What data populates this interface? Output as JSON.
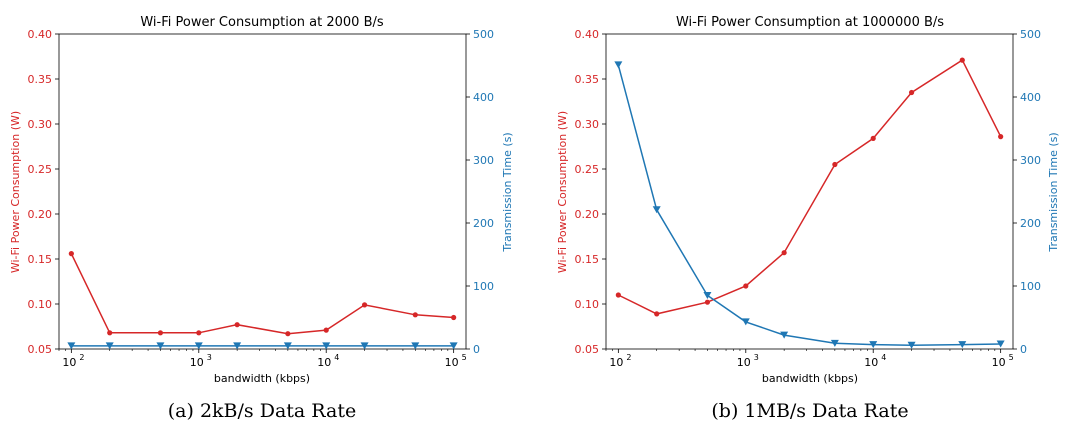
{
  "colors": {
    "power": "#d62728",
    "time": "#1f77b4"
  },
  "chart_data": [
    {
      "type": "line",
      "title": "Wi-Fi Power Consumption at 2000 B/s",
      "caption": "(a) 2kB/s Data Rate",
      "xlabel": "bandwidth (kbps)",
      "xscale": "log",
      "xlim": [
        80,
        125000
      ],
      "xticks": [
        100,
        1000,
        10000,
        100000
      ],
      "xtick_labels": [
        "10",
        "10",
        "10",
        "10"
      ],
      "xtick_exponents": [
        "2",
        "3",
        "4",
        "5"
      ],
      "ylabel_left": "Wi-Fi Power Consumption (W)",
      "ylabel_right": "Transmission Time (s)",
      "ylim_left": [
        0.05,
        0.4
      ],
      "ylim_right": [
        0,
        500
      ],
      "yticks_left": [
        "0.05",
        "0.10",
        "0.15",
        "0.20",
        "0.25",
        "0.30",
        "0.35",
        "0.40"
      ],
      "yticks_right": [
        "0",
        "100",
        "200",
        "300",
        "400",
        "500"
      ],
      "x": [
        100,
        200,
        500,
        1000,
        2000,
        5000,
        10000,
        20000,
        50000,
        100000
      ],
      "series": [
        {
          "axis": "left",
          "color": "#d62728",
          "marker": "circle",
          "values": [
            0.156,
            0.068,
            0.068,
            0.068,
            0.077,
            0.067,
            0.071,
            0.099,
            0.088,
            0.085
          ]
        },
        {
          "axis": "right",
          "color": "#1f77b4",
          "marker": "triangle-down",
          "values": [
            5,
            5,
            5,
            5,
            5,
            5,
            5,
            5,
            5,
            5
          ]
        }
      ]
    },
    {
      "type": "line",
      "title": "Wi-Fi Power Consumption at 1000000 B/s",
      "caption": "(b) 1MB/s Data Rate",
      "xlabel": "bandwidth (kbps)",
      "xscale": "log",
      "xlim": [
        80,
        125000
      ],
      "xticks": [
        100,
        1000,
        10000,
        100000
      ],
      "xtick_labels": [
        "10",
        "10",
        "10",
        "10"
      ],
      "xtick_exponents": [
        "2",
        "3",
        "4",
        "5"
      ],
      "ylabel_left": "Wi-Fi Power Consumption (W)",
      "ylabel_right": "Transmission Time (s)",
      "ylim_left": [
        0.05,
        0.4
      ],
      "ylim_right": [
        0,
        500
      ],
      "yticks_left": [
        "0.05",
        "0.10",
        "0.15",
        "0.20",
        "0.25",
        "0.30",
        "0.35",
        "0.40"
      ],
      "yticks_right": [
        "0",
        "100",
        "200",
        "300",
        "400",
        "500"
      ],
      "x": [
        100,
        200,
        500,
        1000,
        2000,
        5000,
        10000,
        20000,
        50000,
        100000
      ],
      "series": [
        {
          "axis": "left",
          "color": "#d62728",
          "marker": "circle",
          "values": [
            0.11,
            0.089,
            0.102,
            0.12,
            0.157,
            0.255,
            0.284,
            0.335,
            0.371,
            0.286
          ]
        },
        {
          "axis": "right",
          "color": "#1f77b4",
          "marker": "triangle-down",
          "values": [
            451,
            221,
            85,
            43,
            22,
            9,
            7,
            6,
            7,
            8
          ]
        }
      ]
    }
  ]
}
